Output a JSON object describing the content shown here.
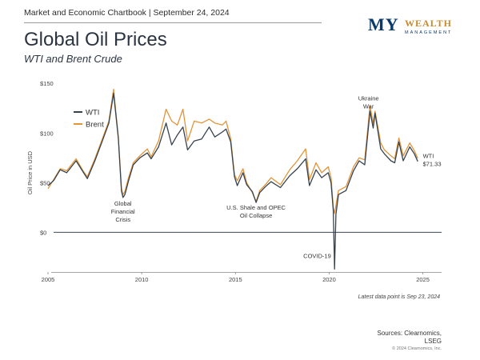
{
  "header": {
    "chartbook_line": "Market and Economic Chartbook | September 24, 2024",
    "logo_my": "MY",
    "logo_wealth": "WEALTH",
    "logo_management": "MANAGEMENT"
  },
  "colors": {
    "wti": "#37424d",
    "brent": "#e0953a",
    "zero_line": "#3a4a5a",
    "axis": "#888888"
  },
  "chart_data": {
    "type": "line",
    "title": "Global Oil Prices",
    "subtitle": "WTI and Brent Crude",
    "ylabel": "Oil Price in USD",
    "ylim": [
      -40,
      155
    ],
    "xlim": [
      2005.0,
      2026.0
    ],
    "yticks": [
      {
        "value": 150,
        "label": "$150"
      },
      {
        "value": 100,
        "label": "$100"
      },
      {
        "value": 50,
        "label": "$50"
      },
      {
        "value": 0,
        "label": "$0"
      }
    ],
    "xticks": [
      {
        "value": 2005,
        "label": "2005"
      },
      {
        "value": 2010,
        "label": "2010"
      },
      {
        "value": 2015,
        "label": "2015"
      },
      {
        "value": 2020,
        "label": "2020"
      },
      {
        "value": 2025,
        "label": "2025"
      }
    ],
    "legend": {
      "placement": "top-left",
      "entries": [
        "WTI",
        "Brent"
      ]
    },
    "series": [
      {
        "name": "WTI",
        "points": [
          [
            2005.0,
            47
          ],
          [
            2005.3,
            52
          ],
          [
            2005.65,
            63
          ],
          [
            2006.0,
            60
          ],
          [
            2006.5,
            72
          ],
          [
            2006.9,
            60
          ],
          [
            2007.1,
            54
          ],
          [
            2007.5,
            72
          ],
          [
            2007.9,
            92
          ],
          [
            2008.25,
            110
          ],
          [
            2008.5,
            140
          ],
          [
            2008.75,
            95
          ],
          [
            2008.92,
            42
          ],
          [
            2009.0,
            35
          ],
          [
            2009.1,
            38
          ],
          [
            2009.3,
            52
          ],
          [
            2009.55,
            68
          ],
          [
            2009.9,
            75
          ],
          [
            2010.3,
            80
          ],
          [
            2010.5,
            74
          ],
          [
            2010.9,
            86
          ],
          [
            2011.3,
            110
          ],
          [
            2011.6,
            88
          ],
          [
            2011.9,
            98
          ],
          [
            2012.2,
            106
          ],
          [
            2012.45,
            83
          ],
          [
            2012.8,
            92
          ],
          [
            2013.2,
            94
          ],
          [
            2013.6,
            106
          ],
          [
            2013.9,
            96
          ],
          [
            2014.3,
            101
          ],
          [
            2014.5,
            104
          ],
          [
            2014.75,
            91
          ],
          [
            2014.95,
            56
          ],
          [
            2015.1,
            47
          ],
          [
            2015.4,
            60
          ],
          [
            2015.6,
            48
          ],
          [
            2015.9,
            41
          ],
          [
            2016.1,
            30
          ],
          [
            2016.3,
            40
          ],
          [
            2016.6,
            46
          ],
          [
            2016.9,
            51
          ],
          [
            2017.4,
            45
          ],
          [
            2017.9,
            57
          ],
          [
            2018.3,
            64
          ],
          [
            2018.75,
            74
          ],
          [
            2018.95,
            47
          ],
          [
            2019.3,
            63
          ],
          [
            2019.6,
            55
          ],
          [
            2019.95,
            60
          ],
          [
            2020.1,
            50
          ],
          [
            2020.22,
            22
          ],
          [
            2020.29,
            -37
          ],
          [
            2020.36,
            18
          ],
          [
            2020.5,
            38
          ],
          [
            2020.9,
            42
          ],
          [
            2021.3,
            62
          ],
          [
            2021.6,
            72
          ],
          [
            2021.9,
            68
          ],
          [
            2022.18,
            122
          ],
          [
            2022.35,
            105
          ],
          [
            2022.45,
            120
          ],
          [
            2022.75,
            84
          ],
          [
            2022.95,
            79
          ],
          [
            2023.3,
            72
          ],
          [
            2023.5,
            70
          ],
          [
            2023.72,
            91
          ],
          [
            2023.95,
            72
          ],
          [
            2024.3,
            86
          ],
          [
            2024.55,
            79
          ],
          [
            2024.73,
            71.33
          ]
        ]
      },
      {
        "name": "Brent",
        "points": [
          [
            2005.0,
            44
          ],
          [
            2005.3,
            53
          ],
          [
            2005.65,
            64
          ],
          [
            2006.0,
            62
          ],
          [
            2006.5,
            74
          ],
          [
            2006.9,
            61
          ],
          [
            2007.1,
            56
          ],
          [
            2007.5,
            74
          ],
          [
            2007.9,
            94
          ],
          [
            2008.25,
            112
          ],
          [
            2008.5,
            144
          ],
          [
            2008.75,
            96
          ],
          [
            2008.92,
            44
          ],
          [
            2009.0,
            38
          ],
          [
            2009.1,
            41
          ],
          [
            2009.3,
            55
          ],
          [
            2009.55,
            70
          ],
          [
            2009.9,
            77
          ],
          [
            2010.3,
            84
          ],
          [
            2010.5,
            76
          ],
          [
            2010.9,
            92
          ],
          [
            2011.3,
            124
          ],
          [
            2011.6,
            112
          ],
          [
            2011.9,
            108
          ],
          [
            2012.2,
            124
          ],
          [
            2012.45,
            92
          ],
          [
            2012.8,
            112
          ],
          [
            2013.2,
            110
          ],
          [
            2013.6,
            114
          ],
          [
            2013.9,
            110
          ],
          [
            2014.3,
            108
          ],
          [
            2014.5,
            112
          ],
          [
            2014.75,
            94
          ],
          [
            2014.95,
            58
          ],
          [
            2015.1,
            52
          ],
          [
            2015.4,
            64
          ],
          [
            2015.6,
            50
          ],
          [
            2015.9,
            40
          ],
          [
            2016.1,
            31
          ],
          [
            2016.3,
            42
          ],
          [
            2016.6,
            48
          ],
          [
            2016.9,
            55
          ],
          [
            2017.4,
            48
          ],
          [
            2017.9,
            63
          ],
          [
            2018.3,
            72
          ],
          [
            2018.75,
            84
          ],
          [
            2018.95,
            53
          ],
          [
            2019.3,
            70
          ],
          [
            2019.6,
            60
          ],
          [
            2019.95,
            66
          ],
          [
            2020.1,
            55
          ],
          [
            2020.22,
            25
          ],
          [
            2020.29,
            19
          ],
          [
            2020.36,
            27
          ],
          [
            2020.5,
            42
          ],
          [
            2020.9,
            46
          ],
          [
            2021.3,
            66
          ],
          [
            2021.6,
            75
          ],
          [
            2021.9,
            73
          ],
          [
            2022.18,
            127
          ],
          [
            2022.35,
            110
          ],
          [
            2022.45,
            122
          ],
          [
            2022.75,
            90
          ],
          [
            2022.95,
            83
          ],
          [
            2023.3,
            77
          ],
          [
            2023.5,
            74
          ],
          [
            2023.72,
            95
          ],
          [
            2023.95,
            77
          ],
          [
            2024.3,
            90
          ],
          [
            2024.55,
            82
          ],
          [
            2024.73,
            74.5
          ]
        ]
      }
    ],
    "annotations": [
      {
        "lines": [
          "Global",
          "Financial",
          "Crisis"
        ],
        "x": 2009.0,
        "y": 27,
        "anchor": "middle"
      },
      {
        "lines": [
          "U.S. Shale and OPEC",
          "Oil Collapse"
        ],
        "x": 2016.1,
        "y": 23,
        "anchor": "middle"
      },
      {
        "lines": [
          "COVID-19"
        ],
        "x": 2020.1,
        "y": -26,
        "anchor": "end"
      },
      {
        "lines": [
          "Ukraine",
          "War"
        ],
        "x": 2022.1,
        "y": 133,
        "anchor": "middle"
      },
      {
        "lines": [
          "WTI",
          "$71.33"
        ],
        "x": 2025.0,
        "y": 75,
        "anchor": "start"
      }
    ]
  },
  "footer": {
    "latest_note": "Latest data point is Sep 23, 2024",
    "sources_line1": "Sources: Clearnomics,",
    "sources_line2": "LSEG",
    "copyright": "© 2024 Clearnomics, Inc."
  }
}
